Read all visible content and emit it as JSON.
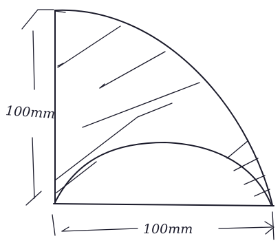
{
  "labels": {
    "height": "100mm",
    "width": "100mm"
  }
}
